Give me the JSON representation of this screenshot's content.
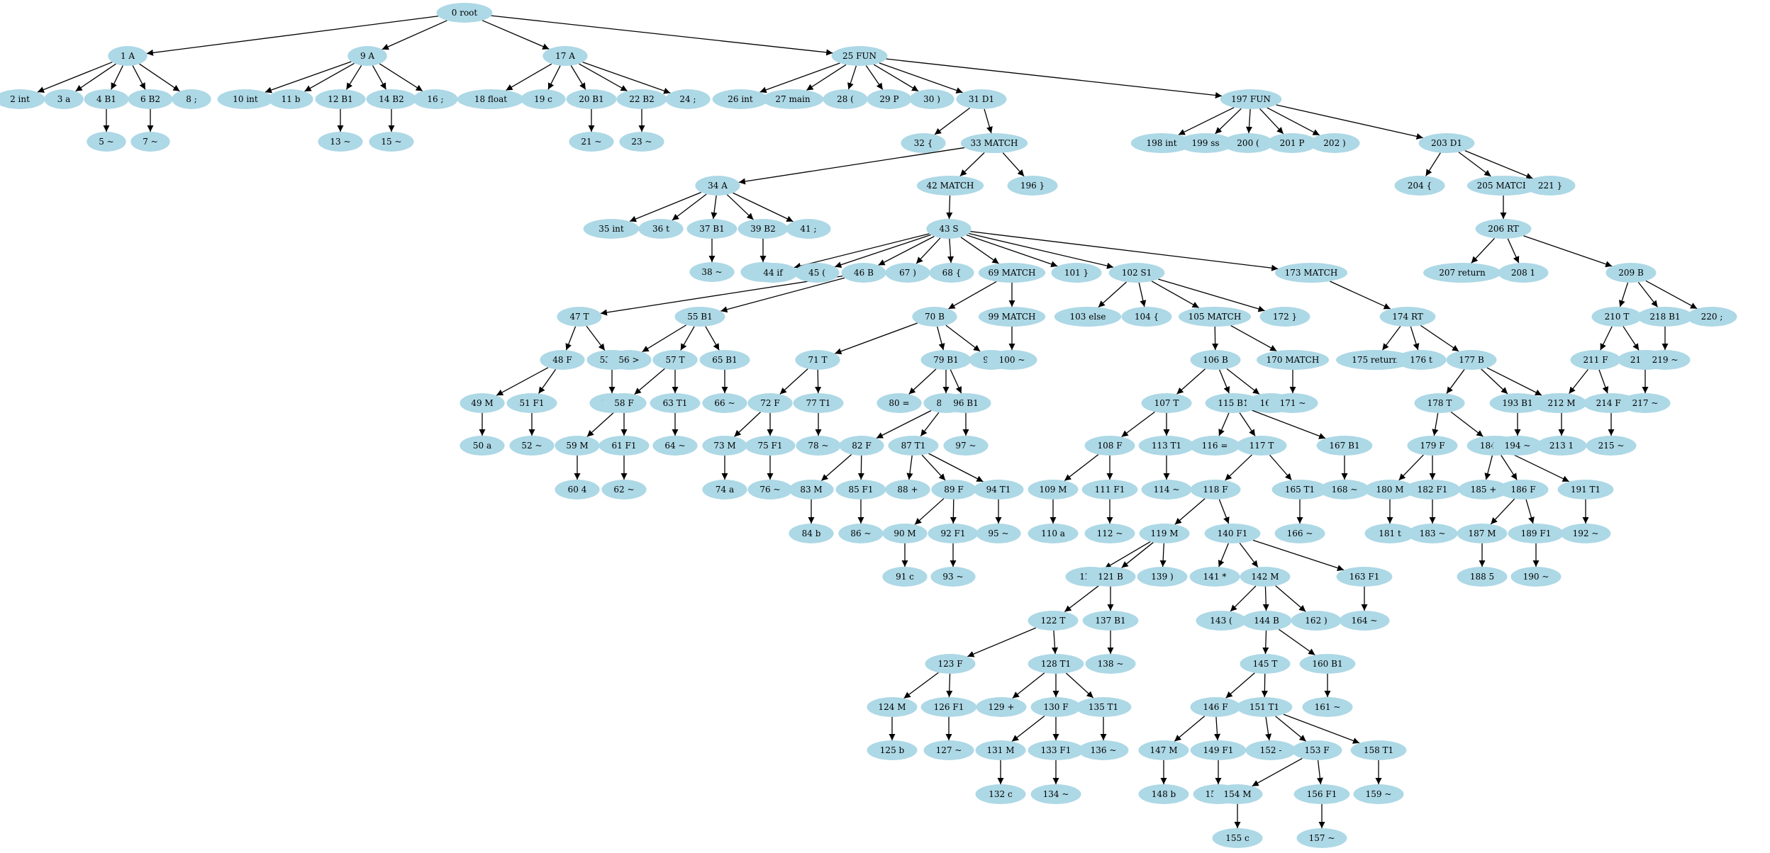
{
  "style": {
    "node_fill": "#add8e6",
    "edge_color": "#000000",
    "background": "#ffffff"
  },
  "nodes": [
    {
      "id": 0,
      "label": "0 root"
    },
    {
      "id": 1,
      "label": "1 A"
    },
    {
      "id": 2,
      "label": "2 int"
    },
    {
      "id": 3,
      "label": "3 a"
    },
    {
      "id": 4,
      "label": "4 B1"
    },
    {
      "id": 5,
      "label": "5 ~"
    },
    {
      "id": 6,
      "label": "6 B2"
    },
    {
      "id": 7,
      "label": "7 ~"
    },
    {
      "id": 8,
      "label": "8 ;"
    },
    {
      "id": 9,
      "label": "9 A"
    },
    {
      "id": 10,
      "label": "10 int"
    },
    {
      "id": 11,
      "label": "11 b"
    },
    {
      "id": 12,
      "label": "12 B1"
    },
    {
      "id": 13,
      "label": "13 ~"
    },
    {
      "id": 14,
      "label": "14 B2"
    },
    {
      "id": 15,
      "label": "15 ~"
    },
    {
      "id": 16,
      "label": "16 ;"
    },
    {
      "id": 17,
      "label": "17 A"
    },
    {
      "id": 18,
      "label": "18 float"
    },
    {
      "id": 19,
      "label": "19 c"
    },
    {
      "id": 20,
      "label": "20 B1"
    },
    {
      "id": 21,
      "label": "21 ~"
    },
    {
      "id": 22,
      "label": "22 B2"
    },
    {
      "id": 23,
      "label": "23 ~"
    },
    {
      "id": 24,
      "label": "24 ;"
    },
    {
      "id": 25,
      "label": "25 FUN"
    },
    {
      "id": 26,
      "label": "26 int"
    },
    {
      "id": 27,
      "label": "27 main"
    },
    {
      "id": 28,
      "label": "28 ("
    },
    {
      "id": 29,
      "label": "29 P"
    },
    {
      "id": 30,
      "label": "30 )"
    },
    {
      "id": 31,
      "label": "31 D1"
    },
    {
      "id": 32,
      "label": "32 {"
    },
    {
      "id": 33,
      "label": "33 MATCH"
    },
    {
      "id": 34,
      "label": "34 A"
    },
    {
      "id": 35,
      "label": "35 int"
    },
    {
      "id": 36,
      "label": "36 t"
    },
    {
      "id": 37,
      "label": "37 B1"
    },
    {
      "id": 38,
      "label": "38 ~"
    },
    {
      "id": 39,
      "label": "39 B2"
    },
    {
      "id": 40,
      "label": "40 ~"
    },
    {
      "id": 41,
      "label": "41 ;"
    },
    {
      "id": 42,
      "label": "42 MATCH"
    },
    {
      "id": 43,
      "label": "43 S"
    },
    {
      "id": 44,
      "label": "44 if"
    },
    {
      "id": 45,
      "label": "45 ("
    },
    {
      "id": 46,
      "label": "46 B"
    },
    {
      "id": 47,
      "label": "47 T"
    },
    {
      "id": 48,
      "label": "48 F"
    },
    {
      "id": 49,
      "label": "49 M"
    },
    {
      "id": 50,
      "label": "50 a"
    },
    {
      "id": 51,
      "label": "51 F1"
    },
    {
      "id": 52,
      "label": "52 ~"
    },
    {
      "id": 53,
      "label": "53 T1"
    },
    {
      "id": 54,
      "label": "54 ~"
    },
    {
      "id": 55,
      "label": "55 B1"
    },
    {
      "id": 56,
      "label": "56 >"
    },
    {
      "id": 57,
      "label": "57 T"
    },
    {
      "id": 58,
      "label": "58 F"
    },
    {
      "id": 59,
      "label": "59 M"
    },
    {
      "id": 60,
      "label": "60 4"
    },
    {
      "id": 61,
      "label": "61 F1"
    },
    {
      "id": 62,
      "label": "62 ~"
    },
    {
      "id": 63,
      "label": "63 T1"
    },
    {
      "id": 64,
      "label": "64 ~"
    },
    {
      "id": 65,
      "label": "65 B1"
    },
    {
      "id": 66,
      "label": "66 ~"
    },
    {
      "id": 67,
      "label": "67 )"
    },
    {
      "id": 68,
      "label": "68 {"
    },
    {
      "id": 69,
      "label": "69 MATCH"
    },
    {
      "id": 70,
      "label": "70 B"
    },
    {
      "id": 71,
      "label": "71 T"
    },
    {
      "id": 72,
      "label": "72 F"
    },
    {
      "id": 73,
      "label": "73 M"
    },
    {
      "id": 74,
      "label": "74 a"
    },
    {
      "id": 75,
      "label": "75 F1"
    },
    {
      "id": 76,
      "label": "76 ~"
    },
    {
      "id": 77,
      "label": "77 T1"
    },
    {
      "id": 78,
      "label": "78 ~"
    },
    {
      "id": 79,
      "label": "79 B1"
    },
    {
      "id": 80,
      "label": "80 ="
    },
    {
      "id": 81,
      "label": "81 T"
    },
    {
      "id": 82,
      "label": "82 F"
    },
    {
      "id": 83,
      "label": "83 M"
    },
    {
      "id": 84,
      "label": "84 b"
    },
    {
      "id": 85,
      "label": "85 F1"
    },
    {
      "id": 86,
      "label": "86 ~"
    },
    {
      "id": 87,
      "label": "87 T1"
    },
    {
      "id": 88,
      "label": "88 +"
    },
    {
      "id": 89,
      "label": "89 F"
    },
    {
      "id": 90,
      "label": "90 M"
    },
    {
      "id": 91,
      "label": "91 c"
    },
    {
      "id": 92,
      "label": "92 F1"
    },
    {
      "id": 93,
      "label": "93 ~"
    },
    {
      "id": 94,
      "label": "94 T1"
    },
    {
      "id": 95,
      "label": "95 ~"
    },
    {
      "id": 96,
      "label": "96 B1"
    },
    {
      "id": 97,
      "label": "97 ~"
    },
    {
      "id": 98,
      "label": "98 ;"
    },
    {
      "id": 99,
      "label": "99 MATCH"
    },
    {
      "id": 100,
      "label": "100 ~"
    },
    {
      "id": 101,
      "label": "101 }"
    },
    {
      "id": 102,
      "label": "102 S1"
    },
    {
      "id": 103,
      "label": "103 else"
    },
    {
      "id": 104,
      "label": "104 {"
    },
    {
      "id": 105,
      "label": "105 MATCH"
    },
    {
      "id": 106,
      "label": "106 B"
    },
    {
      "id": 107,
      "label": "107 T"
    },
    {
      "id": 108,
      "label": "108 F"
    },
    {
      "id": 109,
      "label": "109 M"
    },
    {
      "id": 110,
      "label": "110 a"
    },
    {
      "id": 111,
      "label": "111 F1"
    },
    {
      "id": 112,
      "label": "112 ~"
    },
    {
      "id": 113,
      "label": "113 T1"
    },
    {
      "id": 114,
      "label": "114 ~"
    },
    {
      "id": 115,
      "label": "115 B1"
    },
    {
      "id": 116,
      "label": "116 ="
    },
    {
      "id": 117,
      "label": "117 T"
    },
    {
      "id": 118,
      "label": "118 F"
    },
    {
      "id": 119,
      "label": "119 M"
    },
    {
      "id": 120,
      "label": "120 ("
    },
    {
      "id": 121,
      "label": "121 B"
    },
    {
      "id": 122,
      "label": "122 T"
    },
    {
      "id": 123,
      "label": "123 F"
    },
    {
      "id": 124,
      "label": "124 M"
    },
    {
      "id": 125,
      "label": "125 b"
    },
    {
      "id": 126,
      "label": "126 F1"
    },
    {
      "id": 127,
      "label": "127 ~"
    },
    {
      "id": 128,
      "label": "128 T1"
    },
    {
      "id": 129,
      "label": "129 +"
    },
    {
      "id": 130,
      "label": "130 F"
    },
    {
      "id": 131,
      "label": "131 M"
    },
    {
      "id": 132,
      "label": "132 c"
    },
    {
      "id": 133,
      "label": "133 F1"
    },
    {
      "id": 134,
      "label": "134 ~"
    },
    {
      "id": 135,
      "label": "135 T1"
    },
    {
      "id": 136,
      "label": "136 ~"
    },
    {
      "id": 137,
      "label": "137 B1"
    },
    {
      "id": 138,
      "label": "138 ~"
    },
    {
      "id": 139,
      "label": "139 )"
    },
    {
      "id": 140,
      "label": "140 F1"
    },
    {
      "id": 141,
      "label": "141 *"
    },
    {
      "id": 142,
      "label": "142 M"
    },
    {
      "id": 143,
      "label": "143 ("
    },
    {
      "id": 144,
      "label": "144 B"
    },
    {
      "id": 145,
      "label": "145 T"
    },
    {
      "id": 146,
      "label": "146 F"
    },
    {
      "id": 147,
      "label": "147 M"
    },
    {
      "id": 148,
      "label": "148 b"
    },
    {
      "id": 149,
      "label": "149 F1"
    },
    {
      "id": 150,
      "label": "150 ~"
    },
    {
      "id": 151,
      "label": "151 T1"
    },
    {
      "id": 152,
      "label": "152 -"
    },
    {
      "id": 153,
      "label": "153 F"
    },
    {
      "id": 154,
      "label": "154 M"
    },
    {
      "id": 155,
      "label": "155 c"
    },
    {
      "id": 156,
      "label": "156 F1"
    },
    {
      "id": 157,
      "label": "157 ~"
    },
    {
      "id": 158,
      "label": "158 T1"
    },
    {
      "id": 159,
      "label": "159 ~"
    },
    {
      "id": 160,
      "label": "160 B1"
    },
    {
      "id": 161,
      "label": "161 ~"
    },
    {
      "id": 162,
      "label": "162 )"
    },
    {
      "id": 163,
      "label": "163 F1"
    },
    {
      "id": 164,
      "label": "164 ~"
    },
    {
      "id": 165,
      "label": "165 T1"
    },
    {
      "id": 166,
      "label": "166 ~"
    },
    {
      "id": 167,
      "label": "167 B1"
    },
    {
      "id": 168,
      "label": "168 ~"
    },
    {
      "id": 169,
      "label": "169 ;"
    },
    {
      "id": 170,
      "label": "170 MATCH"
    },
    {
      "id": 171,
      "label": "171 ~"
    },
    {
      "id": 172,
      "label": "172 }"
    },
    {
      "id": 173,
      "label": "173 MATCH"
    },
    {
      "id": 174,
      "label": "174 RT"
    },
    {
      "id": 175,
      "label": "175 return"
    },
    {
      "id": 176,
      "label": "176 t"
    },
    {
      "id": 177,
      "label": "177 B"
    },
    {
      "id": 178,
      "label": "178 T"
    },
    {
      "id": 179,
      "label": "179 F"
    },
    {
      "id": 180,
      "label": "180 M"
    },
    {
      "id": 181,
      "label": "181 t"
    },
    {
      "id": 182,
      "label": "182 F1"
    },
    {
      "id": 183,
      "label": "183 ~"
    },
    {
      "id": 184,
      "label": "184 T1"
    },
    {
      "id": 185,
      "label": "185 +"
    },
    {
      "id": 186,
      "label": "186 F"
    },
    {
      "id": 187,
      "label": "187 M"
    },
    {
      "id": 188,
      "label": "188 5"
    },
    {
      "id": 189,
      "label": "189 F1"
    },
    {
      "id": 190,
      "label": "190 ~"
    },
    {
      "id": 191,
      "label": "191 T1"
    },
    {
      "id": 192,
      "label": "192 ~"
    },
    {
      "id": 193,
      "label": "193 B1"
    },
    {
      "id": 194,
      "label": "194 ~"
    },
    {
      "id": 195,
      "label": "195 ;"
    },
    {
      "id": 196,
      "label": "196 }"
    },
    {
      "id": 197,
      "label": "197 FUN"
    },
    {
      "id": 198,
      "label": "198 int"
    },
    {
      "id": 199,
      "label": "199 ss"
    },
    {
      "id": 200,
      "label": "200 ("
    },
    {
      "id": 201,
      "label": "201 P"
    },
    {
      "id": 202,
      "label": "202 )"
    },
    {
      "id": 203,
      "label": "203 D1"
    },
    {
      "id": 204,
      "label": "204 {"
    },
    {
      "id": 205,
      "label": "205 MATCH"
    },
    {
      "id": 206,
      "label": "206 RT"
    },
    {
      "id": 207,
      "label": "207 return"
    },
    {
      "id": 208,
      "label": "208 1"
    },
    {
      "id": 209,
      "label": "209 B"
    },
    {
      "id": 210,
      "label": "210 T"
    },
    {
      "id": 211,
      "label": "211 F"
    },
    {
      "id": 212,
      "label": "212 M"
    },
    {
      "id": 213,
      "label": "213 1"
    },
    {
      "id": 214,
      "label": "214 F1"
    },
    {
      "id": 215,
      "label": "215 ~"
    },
    {
      "id": 216,
      "label": "216 T1"
    },
    {
      "id": 217,
      "label": "217 ~"
    },
    {
      "id": 218,
      "label": "218 B1"
    },
    {
      "id": 219,
      "label": "219 ~"
    },
    {
      "id": 220,
      "label": "220 ;"
    },
    {
      "id": 221,
      "label": "221 }"
    }
  ],
  "edges": [
    [
      0,
      1
    ],
    [
      0,
      9
    ],
    [
      0,
      17
    ],
    [
      0,
      25
    ],
    [
      1,
      2
    ],
    [
      1,
      3
    ],
    [
      1,
      4
    ],
    [
      1,
      6
    ],
    [
      1,
      8
    ],
    [
      4,
      5
    ],
    [
      6,
      7
    ],
    [
      9,
      10
    ],
    [
      9,
      11
    ],
    [
      9,
      12
    ],
    [
      9,
      14
    ],
    [
      9,
      16
    ],
    [
      12,
      13
    ],
    [
      14,
      15
    ],
    [
      17,
      18
    ],
    [
      17,
      19
    ],
    [
      17,
      20
    ],
    [
      17,
      22
    ],
    [
      17,
      24
    ],
    [
      20,
      21
    ],
    [
      22,
      23
    ],
    [
      25,
      26
    ],
    [
      25,
      27
    ],
    [
      25,
      28
    ],
    [
      25,
      29
    ],
    [
      25,
      30
    ],
    [
      25,
      31
    ],
    [
      25,
      197
    ],
    [
      31,
      32
    ],
    [
      31,
      33
    ],
    [
      33,
      34
    ],
    [
      33,
      42
    ],
    [
      33,
      196
    ],
    [
      34,
      35
    ],
    [
      34,
      36
    ],
    [
      34,
      37
    ],
    [
      34,
      39
    ],
    [
      34,
      41
    ],
    [
      37,
      38
    ],
    [
      39,
      40
    ],
    [
      42,
      43
    ],
    [
      43,
      44
    ],
    [
      43,
      45
    ],
    [
      43,
      46
    ],
    [
      43,
      67
    ],
    [
      43,
      68
    ],
    [
      43,
      69
    ],
    [
      43,
      101
    ],
    [
      43,
      102
    ],
    [
      43,
      173
    ],
    [
      46,
      47
    ],
    [
      46,
      55
    ],
    [
      47,
      48
    ],
    [
      47,
      53
    ],
    [
      48,
      49
    ],
    [
      48,
      51
    ],
    [
      49,
      50
    ],
    [
      51,
      52
    ],
    [
      53,
      54
    ],
    [
      55,
      56
    ],
    [
      55,
      57
    ],
    [
      55,
      65
    ],
    [
      57,
      58
    ],
    [
      57,
      63
    ],
    [
      58,
      59
    ],
    [
      58,
      61
    ],
    [
      59,
      60
    ],
    [
      61,
      62
    ],
    [
      63,
      64
    ],
    [
      65,
      66
    ],
    [
      69,
      70
    ],
    [
      69,
      99
    ],
    [
      99,
      100
    ],
    [
      70,
      71
    ],
    [
      70,
      79
    ],
    [
      70,
      98
    ],
    [
      71,
      72
    ],
    [
      71,
      77
    ],
    [
      72,
      73
    ],
    [
      72,
      75
    ],
    [
      73,
      74
    ],
    [
      75,
      76
    ],
    [
      77,
      78
    ],
    [
      79,
      80
    ],
    [
      79,
      81
    ],
    [
      79,
      96
    ],
    [
      81,
      82
    ],
    [
      81,
      87
    ],
    [
      82,
      83
    ],
    [
      82,
      85
    ],
    [
      83,
      84
    ],
    [
      85,
      86
    ],
    [
      87,
      88
    ],
    [
      87,
      89
    ],
    [
      87,
      94
    ],
    [
      89,
      90
    ],
    [
      89,
      92
    ],
    [
      90,
      91
    ],
    [
      92,
      93
    ],
    [
      94,
      95
    ],
    [
      96,
      97
    ],
    [
      102,
      103
    ],
    [
      102,
      104
    ],
    [
      102,
      105
    ],
    [
      102,
      172
    ],
    [
      105,
      106
    ],
    [
      105,
      170
    ],
    [
      170,
      171
    ],
    [
      106,
      107
    ],
    [
      106,
      115
    ],
    [
      106,
      169
    ],
    [
      107,
      108
    ],
    [
      107,
      113
    ],
    [
      108,
      109
    ],
    [
      108,
      111
    ],
    [
      109,
      110
    ],
    [
      111,
      112
    ],
    [
      113,
      114
    ],
    [
      115,
      116
    ],
    [
      115,
      117
    ],
    [
      115,
      167
    ],
    [
      167,
      168
    ],
    [
      117,
      118
    ],
    [
      117,
      165
    ],
    [
      165,
      166
    ],
    [
      118,
      119
    ],
    [
      118,
      140
    ],
    [
      119,
      120
    ],
    [
      119,
      121
    ],
    [
      119,
      139
    ],
    [
      121,
      122
    ],
    [
      121,
      137
    ],
    [
      137,
      138
    ],
    [
      122,
      123
    ],
    [
      122,
      128
    ],
    [
      123,
      124
    ],
    [
      123,
      126
    ],
    [
      124,
      125
    ],
    [
      126,
      127
    ],
    [
      128,
      129
    ],
    [
      128,
      130
    ],
    [
      128,
      135
    ],
    [
      130,
      131
    ],
    [
      130,
      133
    ],
    [
      131,
      132
    ],
    [
      133,
      134
    ],
    [
      135,
      136
    ],
    [
      140,
      141
    ],
    [
      140,
      142
    ],
    [
      140,
      163
    ],
    [
      163,
      164
    ],
    [
      142,
      143
    ],
    [
      142,
      144
    ],
    [
      142,
      162
    ],
    [
      144,
      145
    ],
    [
      144,
      160
    ],
    [
      160,
      161
    ],
    [
      145,
      146
    ],
    [
      145,
      151
    ],
    [
      146,
      147
    ],
    [
      146,
      149
    ],
    [
      147,
      148
    ],
    [
      149,
      150
    ],
    [
      151,
      152
    ],
    [
      151,
      153
    ],
    [
      151,
      158
    ],
    [
      153,
      154
    ],
    [
      153,
      156
    ],
    [
      154,
      155
    ],
    [
      156,
      157
    ],
    [
      158,
      159
    ],
    [
      173,
      174
    ],
    [
      174,
      175
    ],
    [
      174,
      176
    ],
    [
      174,
      177
    ],
    [
      177,
      178
    ],
    [
      177,
      193
    ],
    [
      177,
      195
    ],
    [
      193,
      194
    ],
    [
      178,
      179
    ],
    [
      178,
      184
    ],
    [
      179,
      180
    ],
    [
      179,
      182
    ],
    [
      180,
      181
    ],
    [
      182,
      183
    ],
    [
      184,
      185
    ],
    [
      184,
      186
    ],
    [
      184,
      191
    ],
    [
      186,
      187
    ],
    [
      186,
      189
    ],
    [
      187,
      188
    ],
    [
      189,
      190
    ],
    [
      191,
      192
    ],
    [
      197,
      198
    ],
    [
      197,
      199
    ],
    [
      197,
      200
    ],
    [
      197,
      201
    ],
    [
      197,
      202
    ],
    [
      197,
      203
    ],
    [
      203,
      204
    ],
    [
      203,
      205
    ],
    [
      203,
      221
    ],
    [
      205,
      206
    ],
    [
      206,
      207
    ],
    [
      206,
      208
    ],
    [
      206,
      209
    ],
    [
      209,
      210
    ],
    [
      209,
      218
    ],
    [
      209,
      220
    ],
    [
      210,
      211
    ],
    [
      210,
      216
    ],
    [
      211,
      212
    ],
    [
      211,
      214
    ],
    [
      212,
      213
    ],
    [
      214,
      215
    ],
    [
      216,
      217
    ],
    [
      218,
      219
    ]
  ]
}
